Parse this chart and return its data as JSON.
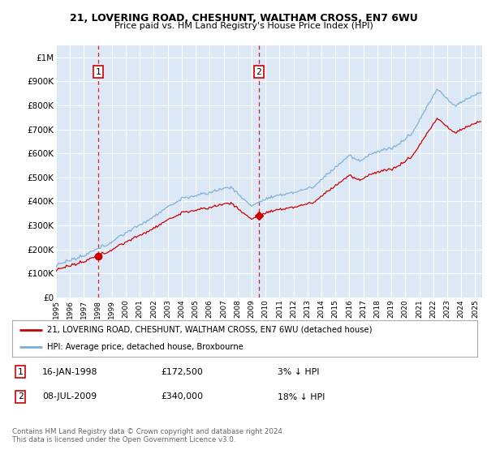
{
  "title1": "21, LOVERING ROAD, CHESHUNT, WALTHAM CROSS, EN7 6WU",
  "title2": "Price paid vs. HM Land Registry's House Price Index (HPI)",
  "yticks": [
    0,
    100000,
    200000,
    300000,
    400000,
    500000,
    600000,
    700000,
    800000,
    900000,
    1000000
  ],
  "ytick_labels": [
    "£0",
    "£100K",
    "£200K",
    "£300K",
    "£400K",
    "£500K",
    "£600K",
    "£700K",
    "£800K",
    "£900K",
    "£1M"
  ],
  "ylim": [
    0,
    1050000
  ],
  "xlim_start": 1995.0,
  "xlim_end": 2025.5,
  "bg_color": "#dce8f5",
  "grid_color": "#ffffff",
  "sale1_x": 1998.04,
  "sale1_y": 172500,
  "sale2_x": 2009.52,
  "sale2_y": 340000,
  "sale1_below_pct": 0.03,
  "sale2_below_pct": 0.18,
  "legend_label1": "21, LOVERING ROAD, CHESHUNT, WALTHAM CROSS, EN7 6WU (detached house)",
  "legend_label2": "HPI: Average price, detached house, Broxbourne",
  "hpi_color": "#7bafd4",
  "price_color": "#cc0000",
  "dashed_color": "#cc0000",
  "footer": "Contains HM Land Registry data © Crown copyright and database right 2024.\nThis data is licensed under the Open Government Licence v3.0."
}
